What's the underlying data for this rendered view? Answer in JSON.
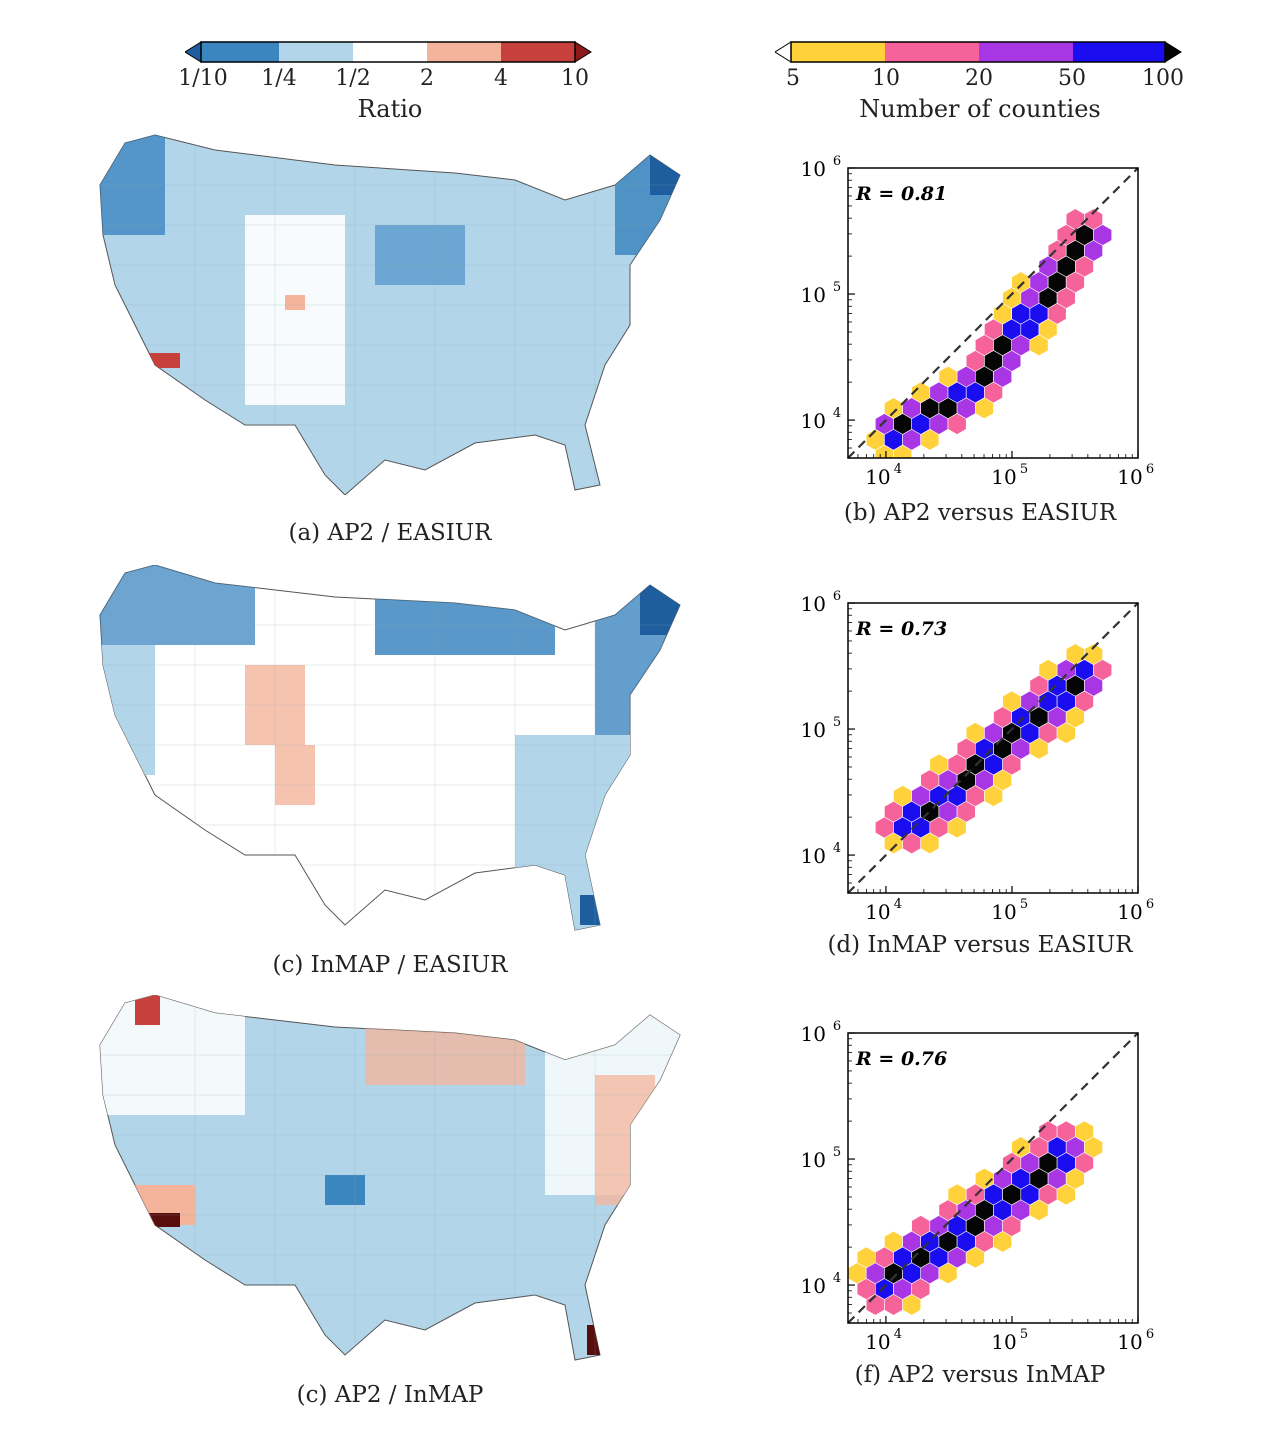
{
  "ratio_colorbar": {
    "title": "Ratio",
    "ticks": [
      "1/10",
      "1/4",
      "1/2",
      "2",
      "4",
      "10"
    ],
    "colors": [
      "#1f5e9e",
      "#3c86c0",
      "#b2d5ea",
      "#ffffff",
      "#f4b49b",
      "#c8403b",
      "#8b1a1a"
    ]
  },
  "count_colorbar": {
    "title": "Number of counties",
    "ticks": [
      "5",
      "10",
      "20",
      "50",
      "100"
    ],
    "colors": [
      "#ffffff",
      "#ffd13a",
      "#f5639a",
      "#a936e4",
      "#1a0df0",
      "#050505"
    ]
  },
  "captions": {
    "a": "(a) AP2 / EASIUR",
    "b": "(b) AP2 versus EASIUR",
    "c1": "(c) InMAP / EASIUR",
    "d": "(d) InMAP versus EASIUR",
    "c2": "(c) AP2 / InMAP",
    "f": "(f) AP2 versus InMAP"
  },
  "maps": [
    {
      "id": "a",
      "dominant": "light-blue",
      "notes": "mostly lower ratio, darker blue in Pacific Northwest and Maine"
    },
    {
      "id": "c1",
      "dominant": "white",
      "notes": "blue in north and east coast, salmon patches in Rockies"
    },
    {
      "id": "c2",
      "dominant": "light-blue",
      "notes": "salmon in Northeast, Great Lakes, California; dark red Los Angeles and south Florida"
    }
  ],
  "chart_data": [
    {
      "type": "hexbin",
      "title": "",
      "r_label": "R = 0.81",
      "xscale": "log",
      "yscale": "log",
      "xlim": [
        5000,
        1000000
      ],
      "ylim": [
        5000,
        1000000
      ],
      "x_ticks": [
        "10",
        "10",
        "10"
      ],
      "x_tick_exps": [
        "4",
        "5",
        "6"
      ],
      "y_ticks": [
        "10",
        "10",
        "10"
      ],
      "y_tick_exps": [
        "4",
        "5",
        "6"
      ],
      "reference_line": "y = x",
      "ridge": [
        [
          12000,
          8000
        ],
        [
          20000,
          11000
        ],
        [
          35000,
          14000
        ],
        [
          60000,
          22000
        ],
        [
          100000,
          45000
        ],
        [
          200000,
          110000
        ],
        [
          400000,
          300000
        ]
      ],
      "width_dec": 0.22
    },
    {
      "type": "hexbin",
      "title": "",
      "r_label": "R = 0.73",
      "xscale": "log",
      "yscale": "log",
      "xlim": [
        5000,
        1000000
      ],
      "ylim": [
        5000,
        1000000
      ],
      "x_ticks": [
        "10",
        "10",
        "10"
      ],
      "x_tick_exps": [
        "4",
        "5",
        "6"
      ],
      "y_ticks": [
        "10",
        "10",
        "10"
      ],
      "y_tick_exps": [
        "4",
        "5",
        "6"
      ],
      "reference_line": "y = x",
      "ridge": [
        [
          15000,
          18000
        ],
        [
          25000,
          25000
        ],
        [
          45000,
          40000
        ],
        [
          70000,
          65000
        ],
        [
          110000,
          90000
        ],
        [
          200000,
          150000
        ],
        [
          350000,
          250000
        ]
      ],
      "width_dec": 0.25
    },
    {
      "type": "hexbin",
      "title": "",
      "r_label": "R = 0.76",
      "xscale": "log",
      "yscale": "log",
      "xlim": [
        5000,
        1000000
      ],
      "ylim": [
        5000,
        1000000
      ],
      "x_ticks": [
        "10",
        "10",
        "10"
      ],
      "x_tick_exps": [
        "4",
        "5",
        "6"
      ],
      "y_ticks": [
        "10",
        "10",
        "10"
      ],
      "y_tick_exps": [
        "4",
        "5",
        "6"
      ],
      "reference_line": "y = x",
      "ridge": [
        [
          10000,
          11000
        ],
        [
          18000,
          16000
        ],
        [
          30000,
          22000
        ],
        [
          50000,
          30000
        ],
        [
          70000,
          40000
        ],
        [
          120000,
          60000
        ],
        [
          250000,
          110000
        ]
      ],
      "width_dec": 0.28
    }
  ]
}
